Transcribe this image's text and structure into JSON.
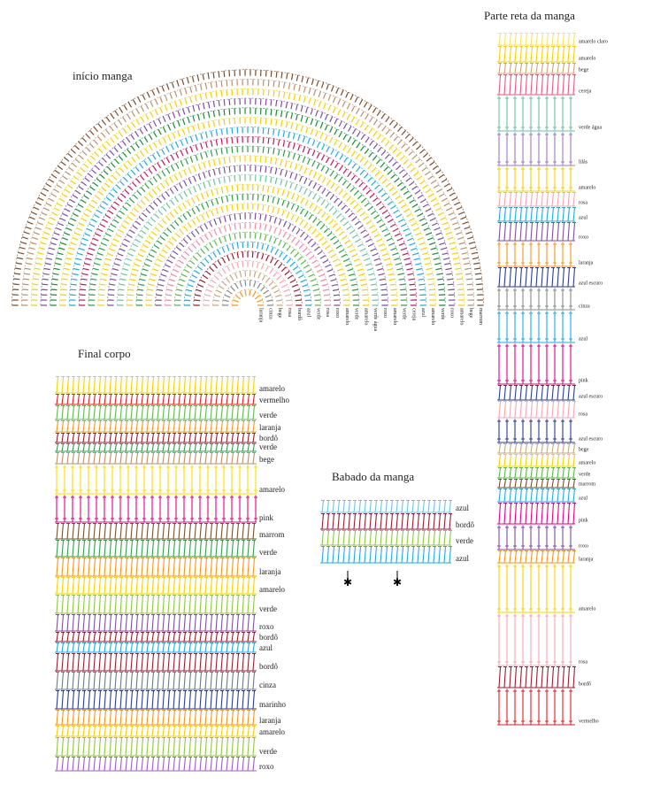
{
  "sections": [
    {
      "title": "início manga",
      "labels": [
        {
          "text": "laranja",
          "color": "#f7941d"
        },
        {
          "text": "cinza",
          "color": "#8a8a8a"
        },
        {
          "text": "bege",
          "color": "#c8a882"
        },
        {
          "text": "rosa",
          "color": "#f4a6b4"
        },
        {
          "text": "bordô",
          "color": "#9b1b30"
        },
        {
          "text": "azul",
          "color": "#1fa9e1"
        },
        {
          "text": "verde",
          "color": "#5cb848"
        },
        {
          "text": "rosa",
          "color": "#f08aa0"
        },
        {
          "text": "roxo",
          "color": "#7b4fa0"
        },
        {
          "text": "amarelo",
          "color": "#f5d000"
        },
        {
          "text": "verde",
          "color": "#2e9e48"
        },
        {
          "text": "amarelo",
          "color": "#f5d000"
        },
        {
          "text": "verde água",
          "color": "#6cc3a0"
        },
        {
          "text": "roxo",
          "color": "#7b4fa0"
        },
        {
          "text": "amarelo",
          "color": "#f5d000"
        },
        {
          "text": "verde",
          "color": "#2e9e48"
        },
        {
          "text": "cereja",
          "color": "#c2185b"
        },
        {
          "text": "azul",
          "color": "#1fa9e1"
        },
        {
          "text": "amarelo",
          "color": "#f5d000"
        },
        {
          "text": "verde",
          "color": "#1a8a3a"
        },
        {
          "text": "roxo",
          "color": "#7b4fa0"
        },
        {
          "text": "amarelo",
          "color": "#f5d000"
        },
        {
          "text": "bege",
          "color": "#b89070"
        },
        {
          "text": "marrom",
          "color": "#7a4e2e"
        }
      ]
    },
    {
      "title": "Parte reta da manga",
      "labels": [
        {
          "text": "amarelo claro",
          "color": "#f7e36a"
        },
        {
          "text": "amarelo",
          "color": "#f5d000"
        },
        {
          "text": "bege",
          "color": "#c8a882"
        },
        {
          "text": "cereja",
          "color": "#e05a80"
        },
        {
          "text": "verde água",
          "color": "#6cc3a0"
        },
        {
          "text": "lilás",
          "color": "#9b7bc0"
        },
        {
          "text": "amarelo",
          "color": "#f5d000"
        },
        {
          "text": "rosa",
          "color": "#f4a6b4"
        },
        {
          "text": "azul",
          "color": "#1fa9e1"
        },
        {
          "text": "roxo",
          "color": "#7b4fa0"
        },
        {
          "text": "laranja",
          "color": "#f7941d"
        },
        {
          "text": "azul escuro",
          "color": "#2b3990"
        },
        {
          "text": "cinza",
          "color": "#8a8a8a"
        },
        {
          "text": "azul",
          "color": "#1fa9e1"
        },
        {
          "text": "pink",
          "color": "#e6007e"
        },
        {
          "text": "azul escuro",
          "color": "#2b3990"
        },
        {
          "text": "rosa",
          "color": "#f4a6b4"
        },
        {
          "text": "azul escuro",
          "color": "#2b3990"
        },
        {
          "text": "bege",
          "color": "#c8a882"
        },
        {
          "text": "amarelo",
          "color": "#f5d000"
        },
        {
          "text": "verde",
          "color": "#5cb848"
        },
        {
          "text": "marrom",
          "color": "#7a4e2e"
        },
        {
          "text": "azul",
          "color": "#1fa9e1"
        },
        {
          "text": "pink",
          "color": "#e6007e"
        },
        {
          "text": "roxo",
          "color": "#7b4fa0"
        },
        {
          "text": "laranja",
          "color": "#f7941d"
        },
        {
          "text": "amarelo",
          "color": "#f5d000"
        },
        {
          "text": "rosa",
          "color": "#f4a6b4"
        },
        {
          "text": "bordô",
          "color": "#9b1b30"
        },
        {
          "text": "vermelho",
          "color": "#e41e26"
        }
      ]
    },
    {
      "title": "Final corpo",
      "labels": [
        {
          "text": "amarelo",
          "color": "#f5d000"
        },
        {
          "text": "vermelho",
          "color": "#e41e26"
        },
        {
          "text": "verde",
          "color": "#5cb848"
        },
        {
          "text": "laranja",
          "color": "#f7941d"
        },
        {
          "text": "bordô",
          "color": "#9b1b30"
        },
        {
          "text": "verde",
          "color": "#2e9e48"
        },
        {
          "text": "bege",
          "color": "#b89070"
        },
        {
          "text": "amarelo",
          "color": "#f5e000"
        },
        {
          "text": "pink",
          "color": "#e6007e"
        },
        {
          "text": "marrom",
          "color": "#7a4e2e"
        },
        {
          "text": "verde",
          "color": "#2e9e48"
        },
        {
          "text": "laranja",
          "color": "#f7941d"
        },
        {
          "text": "amarelo",
          "color": "#f5d000"
        },
        {
          "text": "verde",
          "color": "#8cc63f"
        },
        {
          "text": "roxo",
          "color": "#7b4fa0"
        },
        {
          "text": "bordô",
          "color": "#9b1b30"
        },
        {
          "text": "azul",
          "color": "#1fa9e1"
        },
        {
          "text": "bordô",
          "color": "#9b1b30"
        },
        {
          "text": "cinza",
          "color": "#6d7b80"
        },
        {
          "text": "marinho",
          "color": "#2b3990"
        },
        {
          "text": "laranja",
          "color": "#f7941d"
        },
        {
          "text": "amarelo",
          "color": "#f5d000"
        },
        {
          "text": "verde",
          "color": "#8cc63f"
        },
        {
          "text": "roxo",
          "color": "#9b5fc0"
        }
      ]
    },
    {
      "title": "Babado da manga",
      "labels": [
        {
          "text": "azul",
          "color": "#6cc3e8"
        },
        {
          "text": "bordô",
          "color": "#9b1b30"
        },
        {
          "text": "verde",
          "color": "#8cc63f"
        },
        {
          "text": "azul",
          "color": "#1fa9e1"
        }
      ]
    }
  ]
}
